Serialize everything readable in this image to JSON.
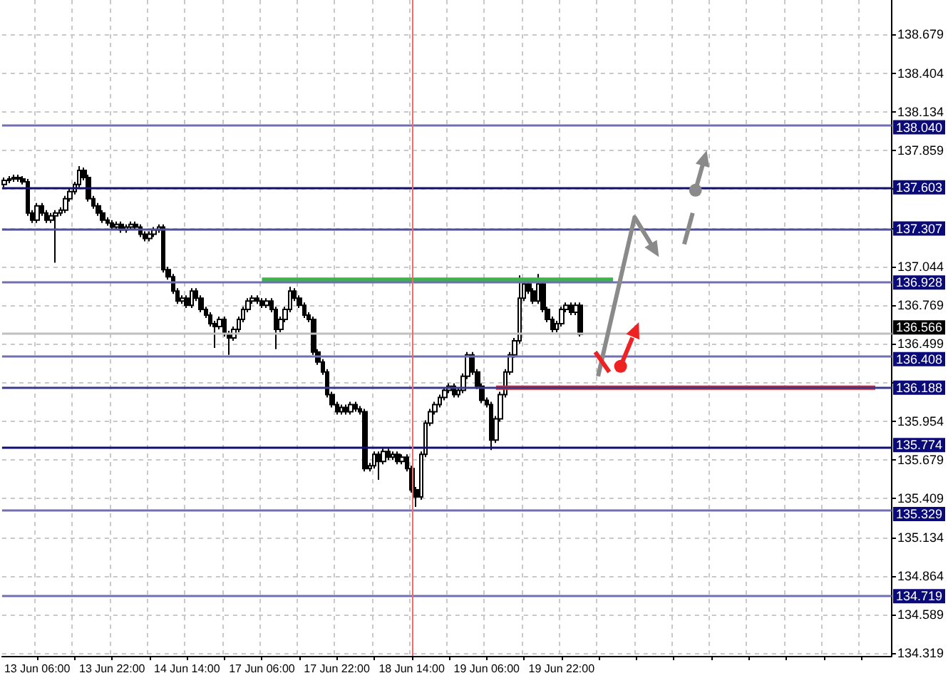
{
  "chart_data": {
    "type": "candlestick",
    "color": "#000000",
    "categories": [
      null,
      null,
      null,
      null,
      null,
      null,
      null,
      "13 Jun 06:00",
      null,
      null,
      null,
      null,
      null,
      null,
      null,
      null,
      null,
      null,
      null,
      null,
      null,
      null,
      null,
      "13 Jun 22:00",
      null,
      null,
      null,
      null,
      null,
      null,
      null,
      null,
      null,
      null,
      null,
      null,
      null,
      null,
      null,
      "14 Jun 14:00",
      null,
      null,
      null,
      null,
      null,
      null,
      null,
      null,
      null,
      null,
      null,
      null,
      null,
      null,
      null,
      "17 Jun 06:00",
      null,
      null,
      null,
      null,
      null,
      null,
      null,
      null,
      null,
      null,
      null,
      null,
      null,
      null,
      null,
      "17 Jun 22:00",
      null,
      null,
      null,
      null,
      null,
      null,
      null,
      null,
      null,
      null,
      null,
      null,
      null,
      null,
      null,
      "18 Jun 14:00",
      null,
      null,
      null,
      null,
      null,
      null,
      null,
      null,
      null,
      null,
      null,
      null,
      null,
      null,
      null,
      "19 Jun 06:00",
      null,
      null,
      null,
      null,
      null,
      null,
      null,
      null,
      null,
      null,
      null,
      null,
      null,
      null,
      null,
      "19 Jun 22:00",
      null,
      null,
      null,
      null,
      null,
      null,
      null,
      null,
      null,
      null,
      null,
      null,
      null,
      null,
      null,
      null,
      null,
      null,
      null,
      null,
      null,
      null,
      null,
      null,
      null,
      null,
      null,
      null,
      null,
      null,
      null,
      null,
      null,
      null,
      null,
      null,
      null,
      null,
      null,
      null,
      null,
      null,
      null,
      null,
      null,
      null,
      null,
      null,
      null,
      null,
      null,
      null,
      null,
      null,
      null,
      null,
      null,
      null,
      null,
      null,
      null,
      null,
      null,
      null,
      null,
      null,
      null,
      null,
      null,
      null
    ],
    "ohlc": [
      [
        137.62,
        137.67,
        137.6,
        137.65
      ],
      [
        137.65,
        137.68,
        137.63,
        137.66
      ],
      [
        137.66,
        137.69,
        137.64,
        137.67
      ],
      [
        137.67,
        137.69,
        137.64,
        137.66
      ],
      [
        137.66,
        137.68,
        137.62,
        137.64
      ],
      [
        137.64,
        137.66,
        137.4,
        137.42
      ],
      [
        137.42,
        137.44,
        137.35,
        137.37
      ],
      [
        137.37,
        137.49,
        137.35,
        137.47
      ],
      [
        137.47,
        137.49,
        137.4,
        137.42
      ],
      [
        137.42,
        137.44,
        137.35,
        137.37
      ],
      [
        137.37,
        137.42,
        137.35,
        137.4
      ],
      [
        137.4,
        137.44,
        137.07,
        137.42
      ],
      [
        137.42,
        137.46,
        137.4,
        137.44
      ],
      [
        137.44,
        137.54,
        137.42,
        137.52
      ],
      [
        137.52,
        137.59,
        137.5,
        137.57
      ],
      [
        137.57,
        137.64,
        137.55,
        137.62
      ],
      [
        137.62,
        137.75,
        137.6,
        137.72
      ],
      [
        137.72,
        137.74,
        137.65,
        137.67
      ],
      [
        137.67,
        137.69,
        137.5,
        137.52
      ],
      [
        137.52,
        137.54,
        137.45,
        137.47
      ],
      [
        137.47,
        137.49,
        137.4,
        137.42
      ],
      [
        137.42,
        137.44,
        137.35,
        137.37
      ],
      [
        137.37,
        137.39,
        137.33,
        137.35
      ],
      [
        137.35,
        137.37,
        137.3,
        137.32
      ],
      [
        137.32,
        137.36,
        137.3,
        137.34
      ],
      [
        137.34,
        137.36,
        137.28,
        137.3
      ],
      [
        137.3,
        137.34,
        137.28,
        137.32
      ],
      [
        137.32,
        137.36,
        137.3,
        137.34
      ],
      [
        137.34,
        137.36,
        137.3,
        137.32
      ],
      [
        137.32,
        137.34,
        137.25,
        137.27
      ],
      [
        137.27,
        137.29,
        137.22,
        137.24
      ],
      [
        137.24,
        137.29,
        137.22,
        137.27
      ],
      [
        137.27,
        137.32,
        137.25,
        137.3
      ],
      [
        137.3,
        137.34,
        137.28,
        137.32
      ],
      [
        137.32,
        137.34,
        137.0,
        137.02
      ],
      [
        137.02,
        137.04,
        136.95,
        136.97
      ],
      [
        136.97,
        136.99,
        136.85,
        136.87
      ],
      [
        136.87,
        136.89,
        136.78,
        136.8
      ],
      [
        136.8,
        136.84,
        136.78,
        136.82
      ],
      [
        136.82,
        136.84,
        136.75,
        136.77
      ],
      [
        136.77,
        136.89,
        136.75,
        136.87
      ],
      [
        136.87,
        136.89,
        136.8,
        136.82
      ],
      [
        136.82,
        136.84,
        136.72,
        136.74
      ],
      [
        136.74,
        136.76,
        136.68,
        136.7
      ],
      [
        136.7,
        136.72,
        136.62,
        136.64
      ],
      [
        136.64,
        136.66,
        136.47,
        136.62
      ],
      [
        136.62,
        136.69,
        136.6,
        136.67
      ],
      [
        136.67,
        136.69,
        136.55,
        136.57
      ],
      [
        136.57,
        136.59,
        136.42,
        136.54
      ],
      [
        136.54,
        136.62,
        136.52,
        136.6
      ],
      [
        136.6,
        136.69,
        136.58,
        136.67
      ],
      [
        136.67,
        136.76,
        136.65,
        136.74
      ],
      [
        136.74,
        136.82,
        136.72,
        136.8
      ],
      [
        136.8,
        136.84,
        136.78,
        136.82
      ],
      [
        136.82,
        136.84,
        136.78,
        136.8
      ],
      [
        136.8,
        136.82,
        136.75,
        136.77
      ],
      [
        136.77,
        136.82,
        136.75,
        136.8
      ],
      [
        136.8,
        136.82,
        136.72,
        136.74
      ],
      [
        136.74,
        136.76,
        136.46,
        136.6
      ],
      [
        136.6,
        136.69,
        136.58,
        136.67
      ],
      [
        136.67,
        136.76,
        136.65,
        136.74
      ],
      [
        136.74,
        136.9,
        136.72,
        136.87
      ],
      [
        136.87,
        136.89,
        136.8,
        136.82
      ],
      [
        136.82,
        136.84,
        136.75,
        136.77
      ],
      [
        136.77,
        136.79,
        136.68,
        136.7
      ],
      [
        136.7,
        136.72,
        136.65,
        136.67
      ],
      [
        136.67,
        136.69,
        136.42,
        136.44
      ],
      [
        136.44,
        136.46,
        136.35,
        136.37
      ],
      [
        136.37,
        136.39,
        136.28,
        136.3
      ],
      [
        136.3,
        136.32,
        136.12,
        136.14
      ],
      [
        136.14,
        136.16,
        136.05,
        136.07
      ],
      [
        136.07,
        136.09,
        136.0,
        136.02
      ],
      [
        136.02,
        136.07,
        136.0,
        136.05
      ],
      [
        136.05,
        136.07,
        136.0,
        136.02
      ],
      [
        136.02,
        136.09,
        136.0,
        136.07
      ],
      [
        136.07,
        136.09,
        136.02,
        136.04
      ],
      [
        136.04,
        136.06,
        136.0,
        136.02
      ],
      [
        136.02,
        136.04,
        135.6,
        135.62
      ],
      [
        135.62,
        135.66,
        135.6,
        135.64
      ],
      [
        135.64,
        135.74,
        135.62,
        135.72
      ],
      [
        135.72,
        135.74,
        135.54,
        135.67
      ],
      [
        135.67,
        135.76,
        135.65,
        135.74
      ],
      [
        135.74,
        135.76,
        135.68,
        135.7
      ],
      [
        135.7,
        135.74,
        135.68,
        135.72
      ],
      [
        135.72,
        135.74,
        135.65,
        135.67
      ],
      [
        135.67,
        135.72,
        135.65,
        135.7
      ],
      [
        135.7,
        135.72,
        135.6,
        135.62
      ],
      [
        135.62,
        135.64,
        135.45,
        135.47
      ],
      [
        135.47,
        135.49,
        135.35,
        135.42
      ],
      [
        135.42,
        135.74,
        135.4,
        135.72
      ],
      [
        135.72,
        135.96,
        135.7,
        135.94
      ],
      [
        135.94,
        136.04,
        135.92,
        136.02
      ],
      [
        136.02,
        136.09,
        136.0,
        136.07
      ],
      [
        136.07,
        136.14,
        136.05,
        136.12
      ],
      [
        136.12,
        136.19,
        136.1,
        136.17
      ],
      [
        136.17,
        136.22,
        136.15,
        136.2
      ],
      [
        136.2,
        136.22,
        136.12,
        136.14
      ],
      [
        136.14,
        136.19,
        136.12,
        136.17
      ],
      [
        136.17,
        136.29,
        136.15,
        136.27
      ],
      [
        136.27,
        136.44,
        136.25,
        136.42
      ],
      [
        136.42,
        136.44,
        136.28,
        136.3
      ],
      [
        136.3,
        136.32,
        136.18,
        136.2
      ],
      [
        136.2,
        136.22,
        136.08,
        136.1
      ],
      [
        136.1,
        136.12,
        136.05,
        136.07
      ],
      [
        136.07,
        136.09,
        135.75,
        135.82
      ],
      [
        135.82,
        135.99,
        135.8,
        135.97
      ],
      [
        135.97,
        136.16,
        135.95,
        136.14
      ],
      [
        136.14,
        136.32,
        136.12,
        136.3
      ],
      [
        136.3,
        136.44,
        136.28,
        136.42
      ],
      [
        136.42,
        136.54,
        136.4,
        136.52
      ],
      [
        136.52,
        136.98,
        136.5,
        136.82
      ],
      [
        136.82,
        136.94,
        136.8,
        136.92
      ],
      [
        136.92,
        136.94,
        136.85,
        136.87
      ],
      [
        136.87,
        136.89,
        136.78,
        136.8
      ],
      [
        136.8,
        136.99,
        136.78,
        136.92
      ],
      [
        136.92,
        136.94,
        136.72,
        136.74
      ],
      [
        136.74,
        136.76,
        136.65,
        136.67
      ],
      [
        136.67,
        136.69,
        136.58,
        136.6
      ],
      [
        136.6,
        136.66,
        136.58,
        136.64
      ],
      [
        136.64,
        136.76,
        136.62,
        136.74
      ],
      [
        136.74,
        136.79,
        136.72,
        136.77
      ],
      [
        136.77,
        136.79,
        136.7,
        136.72
      ],
      [
        136.72,
        136.79,
        136.7,
        136.77
      ],
      [
        136.77,
        136.79,
        136.55,
        136.566
      ],
      null,
      null,
      null,
      null,
      null,
      null,
      null,
      null,
      null,
      null,
      null,
      null,
      null,
      null,
      null,
      null,
      null,
      null,
      null,
      null,
      null,
      null,
      null,
      null,
      null,
      null,
      null,
      null,
      null,
      null,
      null,
      null,
      null,
      null,
      null,
      null,
      null,
      null,
      null,
      null,
      null,
      null,
      null,
      null,
      null,
      null,
      null,
      null,
      null,
      null,
      null,
      null,
      null,
      null,
      null,
      null,
      null,
      null,
      null,
      null,
      null,
      null,
      null,
      null,
      null,
      null
    ],
    "series": [
      {
        "type": "line",
        "color": "#3cb44b",
        "values": [
          null,
          null,
          null,
          null,
          null,
          null,
          null,
          null,
          null,
          null,
          null,
          null,
          null,
          null,
          null,
          null,
          null,
          null,
          null,
          null,
          null,
          null,
          null,
          null,
          null,
          null,
          null,
          null,
          null,
          null,
          null,
          null,
          null,
          null,
          null,
          null,
          null,
          null,
          null,
          null,
          null,
          null,
          null,
          null,
          null,
          null,
          null,
          null,
          null,
          null,
          null,
          null,
          null,
          null,
          null,
          136.95,
          136.95,
          136.95,
          136.95,
          136.95,
          136.95,
          136.95,
          136.95,
          136.95,
          136.95,
          136.95,
          136.95,
          136.95,
          136.95,
          136.95,
          136.95,
          136.95,
          136.95,
          136.95,
          136.95,
          136.95,
          136.95,
          136.95,
          136.95,
          136.95,
          136.95,
          136.95,
          136.95,
          136.95,
          136.95,
          136.95,
          136.95,
          136.95,
          136.95,
          136.95,
          136.95,
          136.95,
          136.95,
          136.95,
          136.95,
          136.95,
          136.95,
          136.95,
          136.95,
          136.95,
          136.95,
          136.95,
          136.95,
          136.95,
          136.95,
          136.95,
          136.95,
          136.95,
          136.95,
          136.95,
          136.95,
          136.95,
          136.95,
          136.95,
          136.95,
          136.95,
          136.95,
          136.95,
          136.95,
          136.95,
          136.95,
          136.95,
          136.95,
          136.95,
          136.95,
          136.95,
          136.95,
          136.95,
          136.95,
          136.95,
          136.95,
          null,
          null,
          null,
          null,
          null,
          null,
          null,
          null,
          null,
          null,
          null,
          null,
          null,
          null,
          null,
          null,
          null,
          null,
          null,
          null,
          null,
          null,
          null,
          null,
          null,
          null,
          null,
          null,
          null,
          null,
          null,
          null,
          null,
          null,
          null,
          null,
          null,
          null,
          null,
          null,
          null,
          null,
          null,
          null,
          null,
          null,
          null,
          null,
          null,
          null,
          null,
          null,
          null,
          null,
          null,
          null,
          null,
          null,
          null
        ]
      },
      {
        "type": "line",
        "color": "#ee2222",
        "values": [
          null,
          null,
          null,
          null,
          null,
          null,
          null,
          null,
          null,
          null,
          null,
          null,
          null,
          null,
          null,
          null,
          null,
          null,
          null,
          null,
          null,
          null,
          null,
          null,
          null,
          null,
          null,
          null,
          null,
          null,
          null,
          null,
          null,
          null,
          null,
          null,
          null,
          null,
          null,
          null,
          null,
          null,
          null,
          null,
          null,
          null,
          null,
          null,
          null,
          null,
          null,
          null,
          null,
          null,
          null,
          null,
          null,
          null,
          null,
          null,
          null,
          null,
          null,
          null,
          null,
          null,
          null,
          null,
          null,
          null,
          null,
          null,
          null,
          null,
          null,
          null,
          null,
          null,
          null,
          null,
          null,
          null,
          null,
          null,
          null,
          null,
          null,
          null,
          null,
          null,
          null,
          null,
          null,
          null,
          null,
          null,
          null,
          null,
          null,
          null,
          null,
          null,
          null,
          null,
          null,
          136.19,
          136.19,
          136.19,
          136.19,
          136.19,
          136.19,
          136.19,
          136.19,
          136.19,
          136.19,
          136.19,
          136.19,
          136.19,
          136.19,
          136.19,
          136.19,
          136.19,
          136.19,
          136.19,
          136.19,
          136.19,
          136.19,
          136.19,
          136.19,
          136.19,
          136.19,
          136.19,
          136.19,
          136.19,
          136.19,
          136.19,
          136.19,
          136.19,
          136.19,
          136.19,
          136.19,
          136.19,
          136.19,
          136.19,
          136.19,
          136.19,
          136.19,
          136.19,
          136.19,
          136.19,
          136.19,
          136.19,
          136.19,
          136.19,
          136.19,
          136.19,
          136.19,
          136.19,
          136.19,
          136.19,
          136.19,
          136.19,
          136.19,
          136.19,
          136.19,
          136.19,
          136.19,
          136.19,
          136.19,
          136.19,
          136.19,
          136.19,
          136.19,
          136.19,
          136.19,
          136.19,
          136.19,
          136.19,
          136.19,
          136.19,
          136.19,
          136.19,
          136.19,
          136.19,
          136.19,
          136.19,
          136.19,
          null,
          null,
          null
        ]
      }
    ],
    "marker": "none",
    "ylim": [
      134.3,
      138.92
    ],
    "yticks": [
      134.319,
      134.589,
      134.864,
      135.134,
      135.409,
      135.679,
      135.954,
      {
        "value": 136.224,
        "label": null
      },
      136.499,
      136.769,
      137.044,
      {
        "value": 137.314,
        "label": null
      },
      {
        "value": 137.589,
        "label": null
      },
      137.859,
      138.134,
      138.404,
      138.679
    ],
    "grid": true,
    "ref_lines": [
      {
        "axis": "y",
        "value": 138.04,
        "label": "138.040",
        "color": "#7070b0"
      },
      {
        "axis": "y",
        "value": 137.603,
        "label": "137.603",
        "color": "#10106e"
      },
      {
        "axis": "y",
        "value": 137.307,
        "label": "137.307",
        "color": "#50509a"
      },
      {
        "axis": "y",
        "value": 136.928,
        "label": "136.928",
        "color": "#7070b0"
      },
      {
        "axis": "y",
        "value": 136.566,
        "label": "136.566",
        "color": "#c0c0c0"
      },
      {
        "axis": "y",
        "value": 136.408,
        "label": "136.408",
        "color": "#7070b0"
      },
      {
        "axis": "y",
        "value": 136.188,
        "label": "136.188",
        "color": "#3a3a8c"
      },
      {
        "axis": "y",
        "value": 135.774,
        "label": "135.774",
        "color": "#10106e"
      },
      {
        "axis": "y",
        "value": 135.329,
        "label": "135.329",
        "color": "#7070b0"
      },
      {
        "axis": "y",
        "value": 134.719,
        "label": "134.719",
        "color": "#7070b0"
      },
      {
        "axis": "x",
        "value": "18 Jun 14:00",
        "label": null,
        "color": "#f06a6a"
      }
    ]
  }
}
